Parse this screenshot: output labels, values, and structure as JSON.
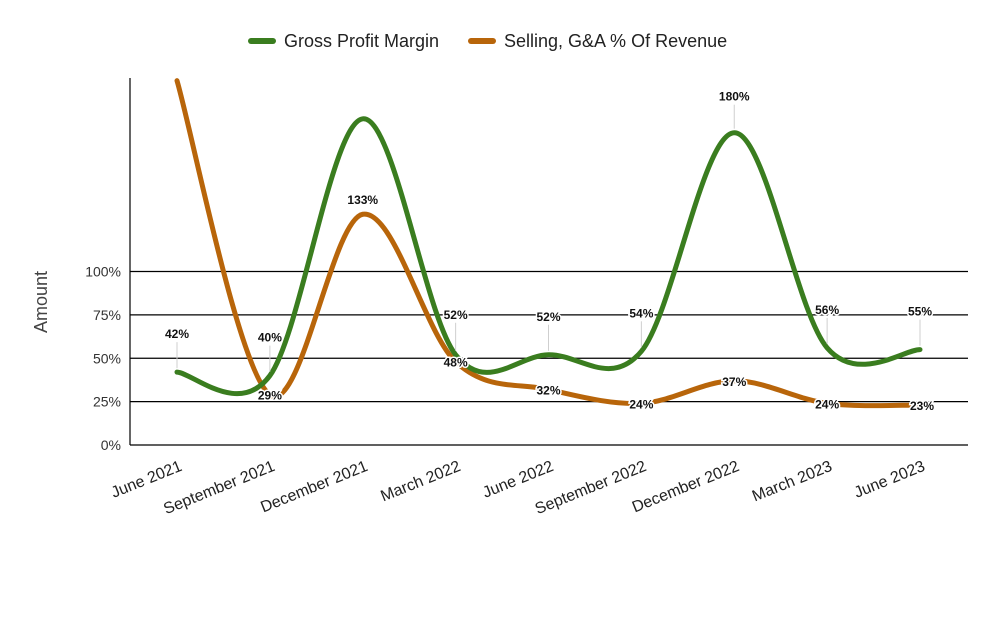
{
  "chart_data": {
    "type": "line",
    "categories": [
      "June 2021",
      "September 2021",
      "December 2021",
      "March 2022",
      "June 2022",
      "September 2022",
      "December 2022",
      "March 2023",
      "June 2023"
    ],
    "series": [
      {
        "name": "Gross Profit Margin",
        "color": "#3a7d1f",
        "values": [
          42,
          40,
          188,
          52,
          52,
          54,
          180,
          56,
          55
        ],
        "labels": [
          "42%",
          "40%",
          "",
          "52%",
          "52%",
          "54%",
          "180%",
          "56%",
          "55%"
        ]
      },
      {
        "name": "Selling, G&A % Of Revenue",
        "color": "#b8650a",
        "values": [
          210,
          29,
          133,
          48,
          32,
          24,
          37,
          24,
          23
        ],
        "labels": [
          "",
          "29%",
          "133%",
          "48%",
          "32%",
          "24%",
          "37%",
          "24%",
          "23%"
        ]
      }
    ],
    "ylabel": "Amount",
    "xlabel": "",
    "yticks": [
      "0%",
      "25%",
      "50%",
      "75%",
      "100%"
    ],
    "ytick_values": [
      0,
      25,
      50,
      75,
      100
    ],
    "ylim": [
      0,
      210
    ],
    "grid": true,
    "legend_position": "top"
  }
}
